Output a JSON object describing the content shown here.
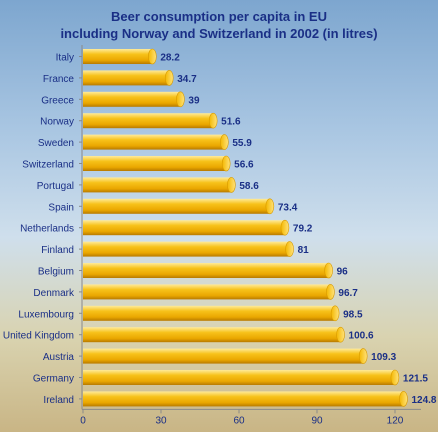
{
  "chart_data": {
    "type": "bar",
    "orientation": "horizontal",
    "title": "Beer consumption per capita in EU",
    "subtitle": "including Norway and Switzerland in 2002 (in litres)",
    "xlabel": "",
    "ylabel": "",
    "categories": [
      "Italy",
      "France",
      "Greece",
      "Norway",
      "Sweden",
      "Switzerland",
      "Portugal",
      "Spain",
      "Netherlands",
      "Finland",
      "Belgium",
      "Denmark",
      "Luxembourg",
      "United Kingdom",
      "Austria",
      "Germany",
      "Ireland"
    ],
    "values": [
      28.2,
      34.7,
      39,
      51.6,
      55.9,
      56.6,
      58.6,
      73.4,
      79.2,
      81,
      96,
      96.7,
      98.5,
      100.6,
      109.3,
      121.5,
      124.8
    ],
    "value_labels": [
      "28.2",
      "34.7",
      "39",
      "51.6",
      "55.9",
      "56.6",
      "58.6",
      "73.4",
      "79.2",
      "81",
      "96",
      "96.7",
      "98.5",
      "100.6",
      "109.3",
      "121.5",
      "124.8"
    ],
    "xlim": [
      0,
      130
    ],
    "xticks": [
      0,
      30,
      60,
      90,
      120
    ],
    "grid": false,
    "legend": "none",
    "colors": {
      "bar": "#f2b400",
      "bar_highlight": "#ffe58a",
      "bar_shadow": "#c98a00",
      "text": "#1a2f86",
      "axis": "#8a8a8a"
    }
  }
}
